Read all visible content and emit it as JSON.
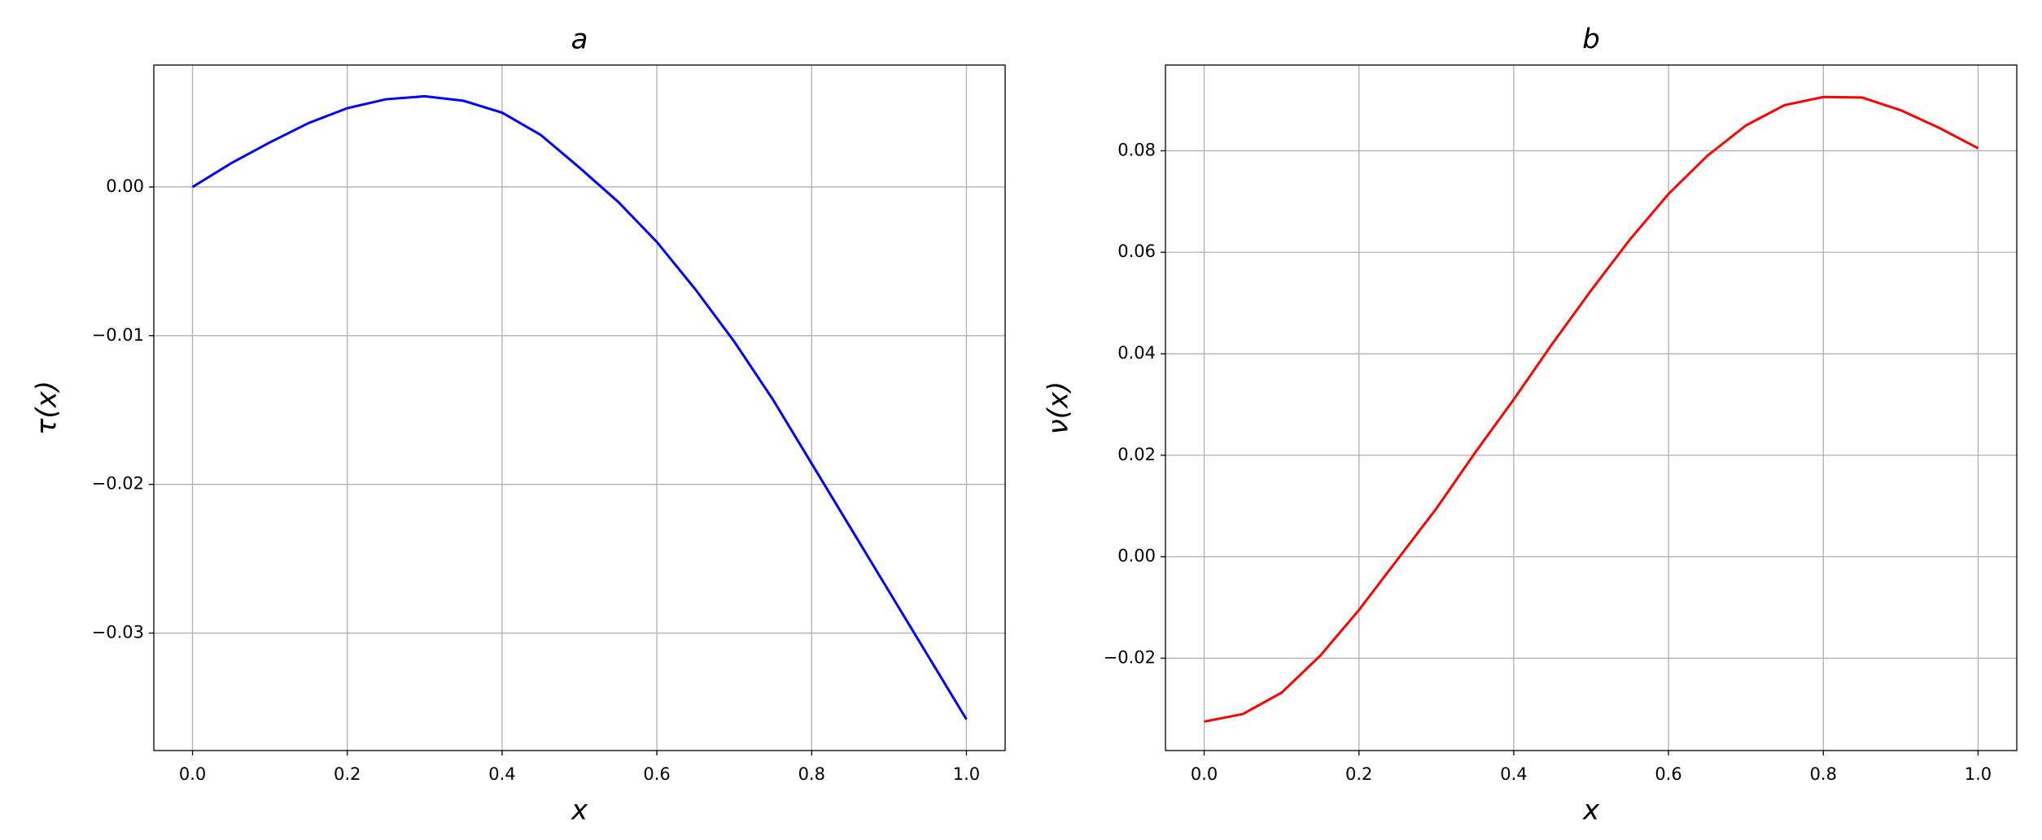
{
  "chart_data": [
    {
      "type": "line",
      "title": "a",
      "xlabel": "x",
      "ylabel": "τ(x)",
      "color": "#0000ff",
      "grid": true,
      "x": [
        0,
        0.05,
        0.1,
        0.15,
        0.2,
        0.25,
        0.3,
        0.35,
        0.4,
        0.45,
        0.5,
        0.55,
        0.6,
        0.65,
        0.7,
        0.75,
        0.8,
        0.85,
        0.9,
        0.95,
        1.0
      ],
      "values": [
        0,
        0.0016,
        0.003,
        0.0043,
        0.0053,
        0.0059,
        0.0061,
        0.0058,
        0.005,
        0.0035,
        0.0013,
        -0.001,
        -0.0037,
        -0.0069,
        -0.0104,
        -0.0143,
        -0.0186,
        -0.0229,
        -0.0272,
        -0.0315,
        -0.0358
      ],
      "xlim": [
        -0.05,
        1.05
      ],
      "xticks": [
        {
          "value": 0,
          "label": "0.0"
        },
        0.2,
        0.4,
        0.6,
        0.8,
        {
          "value": 1,
          "label": "1.0"
        }
      ],
      "ylim": [
        -0.0379,
        0.0082
      ],
      "yticks": [
        {
          "value": 0,
          "label": "0.00"
        },
        {
          "value": -0.01,
          "label": "−0.01"
        },
        {
          "value": -0.02,
          "label": "−0.02"
        },
        {
          "value": -0.03,
          "label": "−0.03"
        }
      ]
    },
    {
      "type": "line",
      "title": "b",
      "xlabel": "x",
      "ylabel": "ν(x)",
      "color": "#ff0000",
      "grid": true,
      "x": [
        0,
        0.05,
        0.1,
        0.15,
        0.2,
        0.25,
        0.3,
        0.35,
        0.4,
        0.45,
        0.5,
        0.55,
        0.6,
        0.65,
        0.7,
        0.75,
        0.8,
        0.85,
        0.9,
        0.95,
        1.0
      ],
      "values": [
        -0.0325,
        -0.031,
        -0.0268,
        -0.0195,
        -0.0105,
        -0.0005,
        0.0095,
        0.0205,
        0.031,
        0.042,
        0.0525,
        0.0625,
        0.0715,
        0.079,
        0.085,
        0.089,
        0.0906,
        0.0905,
        0.088,
        0.0845,
        0.0805
      ],
      "xlim": [
        -0.05,
        1.05
      ],
      "xticks": [
        {
          "value": 0,
          "label": "0.0"
        },
        0.2,
        0.4,
        0.6,
        0.8,
        {
          "value": 1,
          "label": "1.0"
        }
      ],
      "ylim": [
        -0.0382,
        0.0969
      ],
      "yticks": [
        {
          "value": -0.02,
          "label": "−0.02"
        },
        {
          "value": 0,
          "label": "0.00"
        },
        0.02,
        0.04,
        0.06,
        0.08
      ]
    }
  ]
}
